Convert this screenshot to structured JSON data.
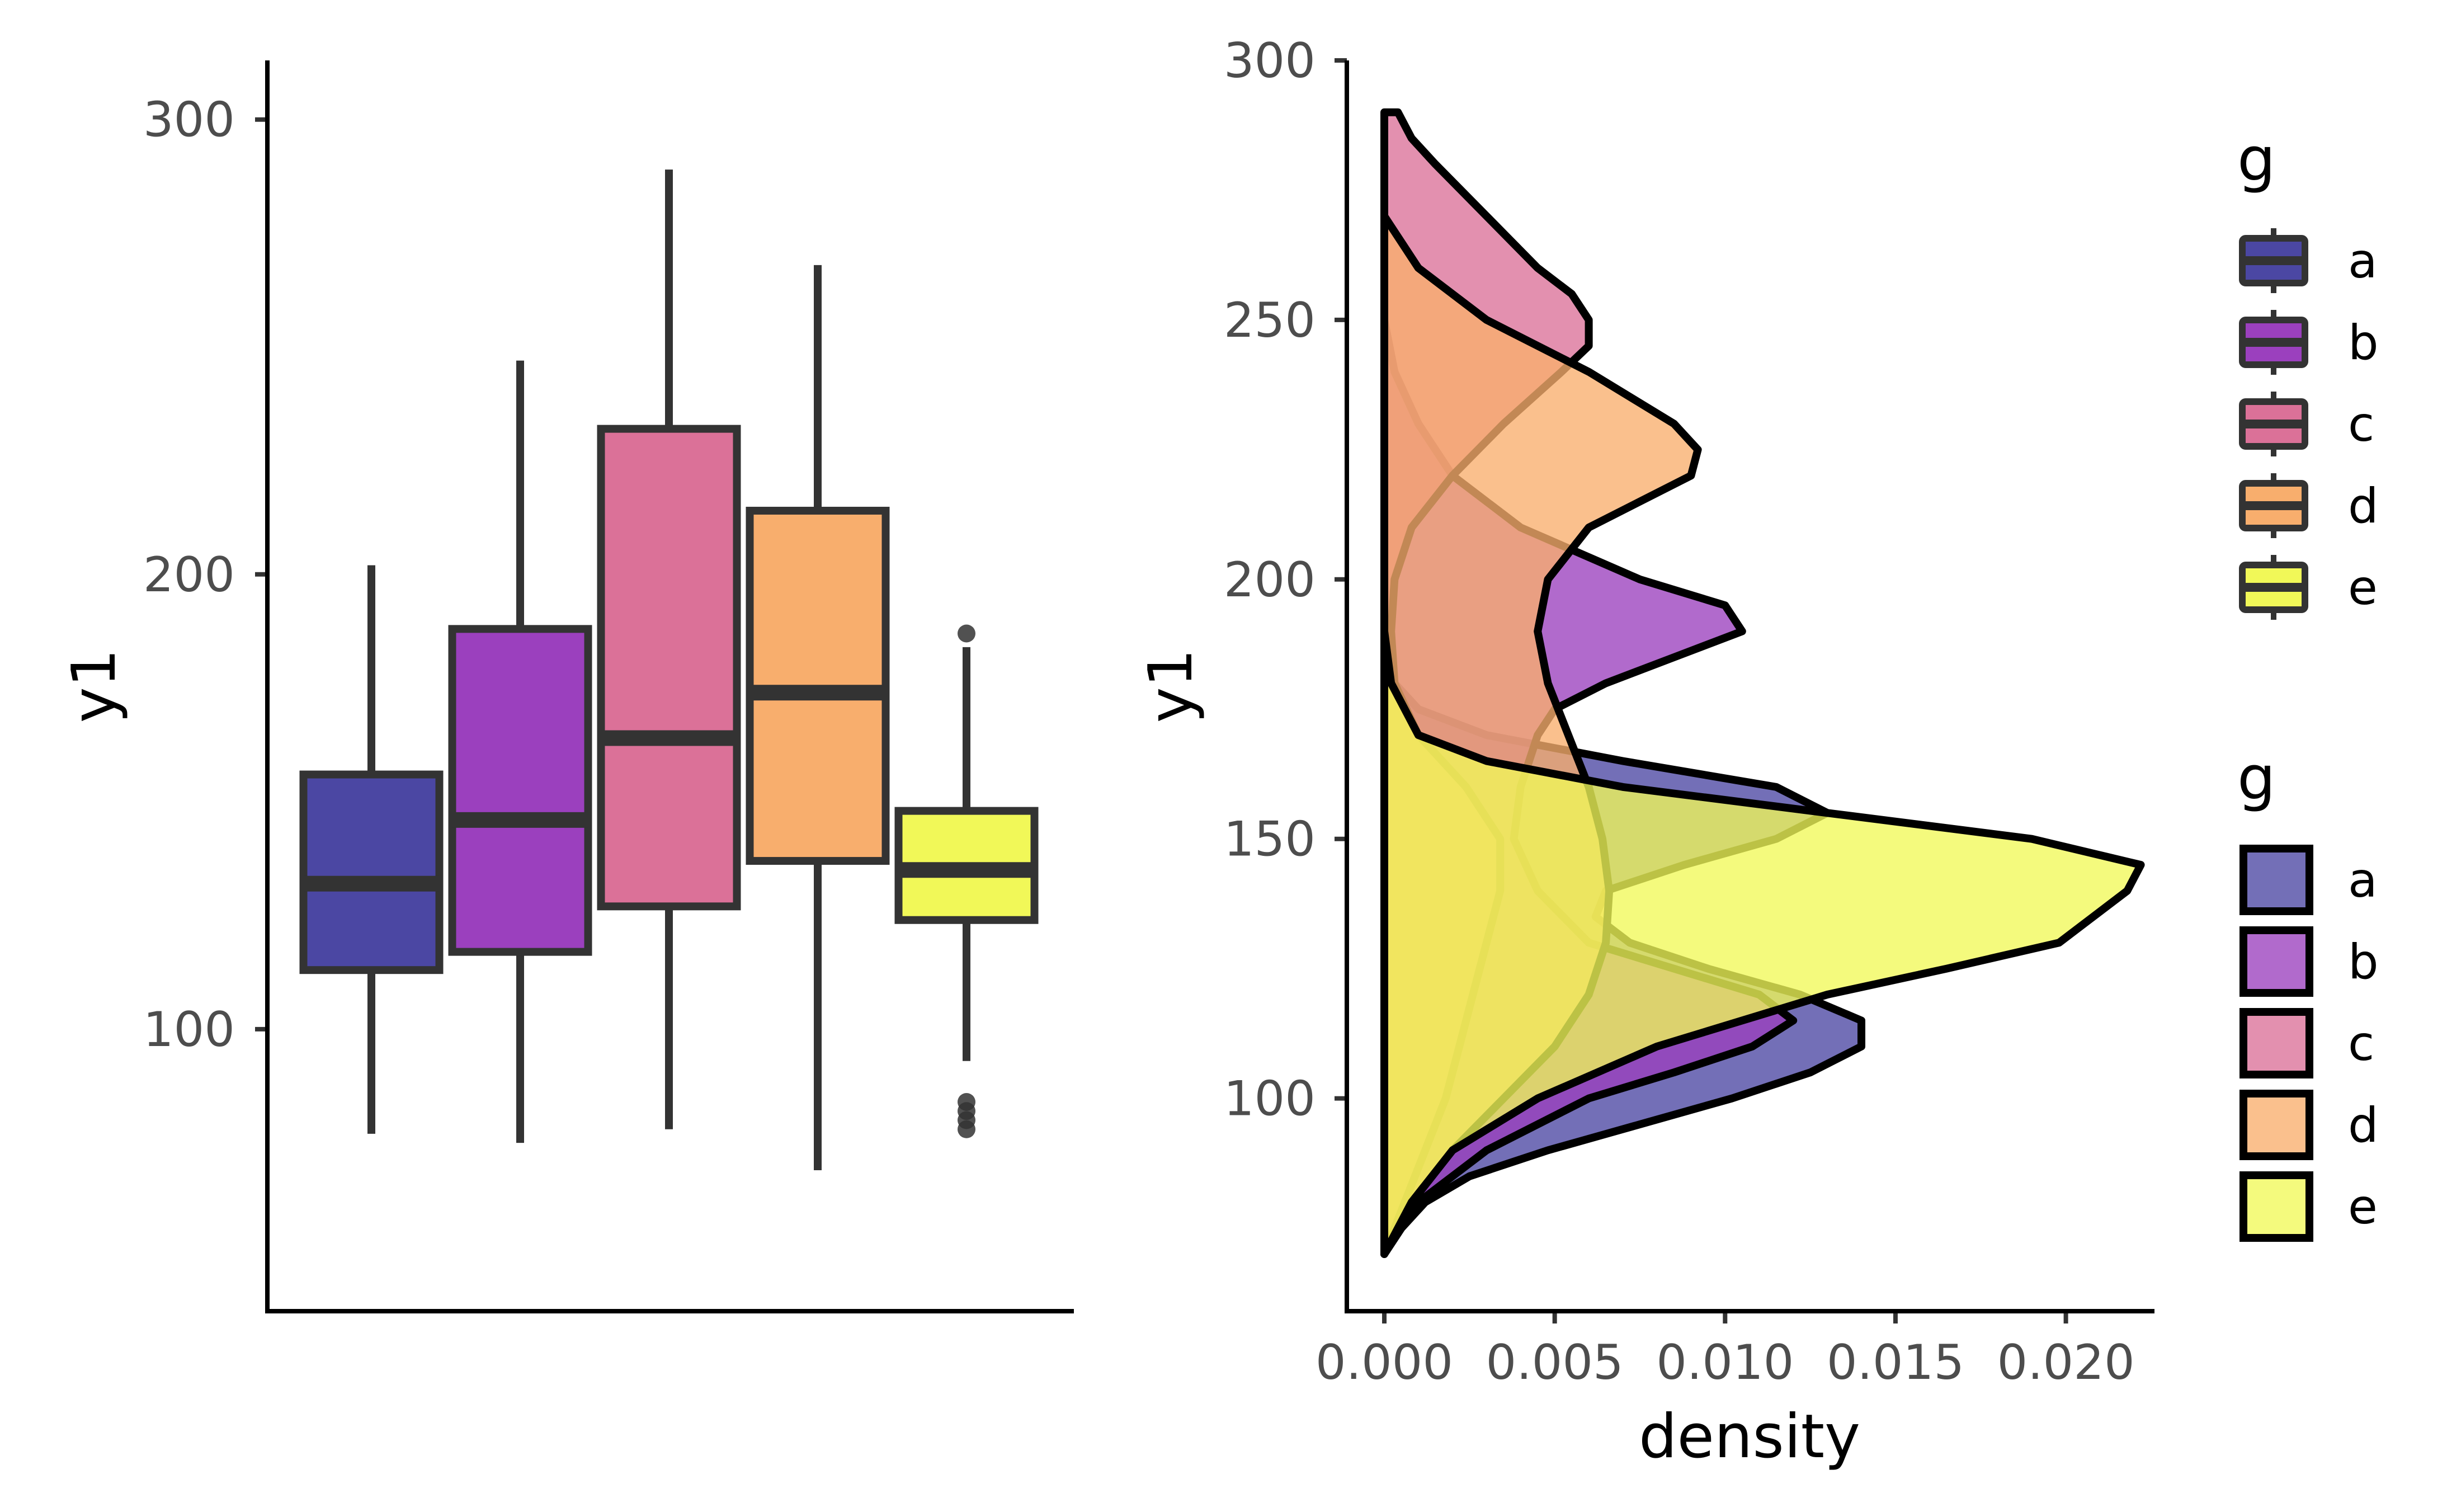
{
  "chart_data": [
    {
      "type": "box",
      "title": "",
      "xlabel": "",
      "ylabel": "y1",
      "ylim": [
        38,
        313
      ],
      "yticks": [
        "100",
        "200",
        "300"
      ],
      "grid": false,
      "legend": "none",
      "series": [
        {
          "group": "a",
          "color": "#4B47A3",
          "whisker_low": 77,
          "q1": 113,
          "median": 132,
          "q3": 156,
          "whisker_high": 202,
          "outliers": []
        },
        {
          "group": "b",
          "color": "#9B40BE",
          "whisker_low": 75,
          "q1": 117,
          "median": 146,
          "q3": 188,
          "whisker_high": 247,
          "outliers": []
        },
        {
          "group": "c",
          "color": "#DB7198",
          "whisker_low": 78,
          "q1": 127,
          "median": 164,
          "q3": 232,
          "whisker_high": 289,
          "outliers": []
        },
        {
          "group": "d",
          "color": "#F8AE6D",
          "whisker_low": 69,
          "q1": 137,
          "median": 174,
          "q3": 214,
          "whisker_high": 268,
          "outliers": []
        },
        {
          "group": "e",
          "color": "#F1F858",
          "whisker_low": 93,
          "q1": 124,
          "median": 135,
          "q3": 148,
          "whisker_high": 184,
          "outliers": [
            187,
            84,
            82,
            80,
            78
          ]
        }
      ]
    },
    {
      "type": "area",
      "title": "",
      "xlabel": "density",
      "ylabel": "y1",
      "xlim": [
        -0.0011,
        0.0226
      ],
      "ylim": [
        59,
        300
      ],
      "xticks": [
        "0.000",
        "0.005",
        "0.010",
        "0.015",
        "0.020"
      ],
      "yticks": [
        "100",
        "150",
        "200",
        "250",
        "300"
      ],
      "grid": false,
      "legend": "right",
      "series": [
        {
          "name": "a",
          "color": "#4B47A3",
          "points": [
            [
              70,
              0
            ],
            [
              75,
              0.0005
            ],
            [
              80,
              0.0012
            ],
            [
              85,
              0.0025
            ],
            [
              90,
              0.0048
            ],
            [
              95,
              0.0075
            ],
            [
              100,
              0.0102
            ],
            [
              105,
              0.0125
            ],
            [
              110,
              0.014
            ],
            [
              115,
              0.014
            ],
            [
              120,
              0.0122
            ],
            [
              125,
              0.0095
            ],
            [
              130,
              0.0072
            ],
            [
              135,
              0.0062
            ],
            [
              140,
              0.0065
            ],
            [
              145,
              0.0088
            ],
            [
              150,
              0.0115
            ],
            [
              155,
              0.013
            ],
            [
              160,
              0.0115
            ],
            [
              165,
              0.007
            ],
            [
              170,
              0.003
            ],
            [
              175,
              0.001
            ],
            [
              180,
              0.0003
            ],
            [
              185,
              0
            ]
          ]
        },
        {
          "name": "b",
          "color": "#9B40BE",
          "points": [
            [
              70,
              0
            ],
            [
              80,
              0.001
            ],
            [
              90,
              0.003
            ],
            [
              100,
              0.006
            ],
            [
              105,
              0.0085
            ],
            [
              110,
              0.0108
            ],
            [
              115,
              0.012
            ],
            [
              120,
              0.011
            ],
            [
              125,
              0.0085
            ],
            [
              130,
              0.006
            ],
            [
              140,
              0.0045
            ],
            [
              150,
              0.0038
            ],
            [
              160,
              0.004
            ],
            [
              170,
              0.0045
            ],
            [
              175,
              0.005
            ],
            [
              180,
              0.0065
            ],
            [
              185,
              0.0085
            ],
            [
              190,
              0.0105
            ],
            [
              195,
              0.01
            ],
            [
              200,
              0.0075
            ],
            [
              210,
              0.004
            ],
            [
              220,
              0.002
            ],
            [
              230,
              0.001
            ],
            [
              240,
              0.0003
            ],
            [
              250,
              0
            ]
          ]
        },
        {
          "name": "c",
          "color": "#DB7198",
          "points": [
            [
              70,
              0
            ],
            [
              80,
              0.0006
            ],
            [
              90,
              0.0012
            ],
            [
              100,
              0.0018
            ],
            [
              110,
              0.0022
            ],
            [
              120,
              0.0026
            ],
            [
              130,
              0.003
            ],
            [
              140,
              0.0034
            ],
            [
              150,
              0.0034
            ],
            [
              160,
              0.0024
            ],
            [
              170,
              0.001
            ],
            [
              180,
              0.0003
            ],
            [
              190,
              0.0002
            ],
            [
              200,
              0.0003
            ],
            [
              210,
              0.0008
            ],
            [
              220,
              0.002
            ],
            [
              230,
              0.0035
            ],
            [
              240,
              0.0052
            ],
            [
              245,
              0.006
            ],
            [
              250,
              0.006
            ],
            [
              255,
              0.0055
            ],
            [
              260,
              0.0045
            ],
            [
              270,
              0.003
            ],
            [
              280,
              0.0015
            ],
            [
              285,
              0.0008
            ],
            [
              290,
              0.0004
            ]
          ]
        },
        {
          "name": "d",
          "color": "#F8AE6D",
          "points": [
            [
              70,
              0
            ],
            [
              80,
              0.0008
            ],
            [
              90,
              0.002
            ],
            [
              100,
              0.0035
            ],
            [
              110,
              0.005
            ],
            [
              120,
              0.006
            ],
            [
              130,
              0.0065
            ],
            [
              140,
              0.0066
            ],
            [
              150,
              0.0064
            ],
            [
              160,
              0.006
            ],
            [
              170,
              0.0054
            ],
            [
              180,
              0.0048
            ],
            [
              190,
              0.0045
            ],
            [
              200,
              0.0048
            ],
            [
              210,
              0.006
            ],
            [
              220,
              0.009
            ],
            [
              225,
              0.0092
            ],
            [
              230,
              0.0085
            ],
            [
              240,
              0.006
            ],
            [
              250,
              0.003
            ],
            [
              260,
              0.001
            ],
            [
              270,
              0
            ]
          ]
        },
        {
          "name": "e",
          "color": "#F1F858",
          "points": [
            [
              70,
              0
            ],
            [
              80,
              0.0008
            ],
            [
              90,
              0.002
            ],
            [
              100,
              0.0045
            ],
            [
              110,
              0.008
            ],
            [
              120,
              0.013
            ],
            [
              125,
              0.0165
            ],
            [
              130,
              0.0198
            ],
            [
              135,
              0.0208
            ],
            [
              140,
              0.0218
            ],
            [
              145,
              0.0222
            ],
            [
              150,
              0.019
            ],
            [
              155,
              0.013
            ],
            [
              160,
              0.007
            ],
            [
              165,
              0.003
            ],
            [
              170,
              0.001
            ],
            [
              180,
              0.0002
            ],
            [
              190,
              0
            ]
          ]
        }
      ]
    }
  ],
  "legends": [
    {
      "title": "g",
      "entries": [
        {
          "label": "a",
          "color": "#4B47A3"
        },
        {
          "label": "b",
          "color": "#9B40BE"
        },
        {
          "label": "c",
          "color": "#DB7198"
        },
        {
          "label": "d",
          "color": "#F8AE6D"
        },
        {
          "label": "e",
          "color": "#F1F858"
        }
      ]
    },
    {
      "title": "g",
      "entries": [
        {
          "label": "a",
          "color": "#4B47A3"
        },
        {
          "label": "b",
          "color": "#9B40BE"
        },
        {
          "label": "c",
          "color": "#DB7198"
        },
        {
          "label": "d",
          "color": "#F8AE6D"
        },
        {
          "label": "e",
          "color": "#F1F858"
        }
      ]
    }
  ]
}
